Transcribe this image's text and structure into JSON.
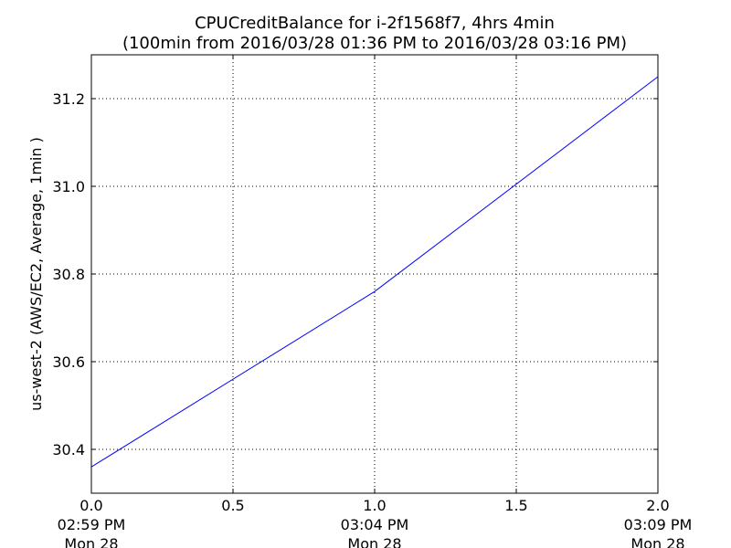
{
  "chart_data": {
    "type": "line",
    "title": "CPUCreditBalance for i-2f1568f7, 4hrs 4min",
    "subtitle": "(100min from 2016/03/28 01:36 PM to 2016/03/28 03:16 PM)",
    "xlabel": "",
    "ylabel": "us-west-2 (AWS/EC2, Average, 1min )",
    "xlim": [
      0.0,
      2.0
    ],
    "ylim": [
      30.3,
      31.3
    ],
    "grid": true,
    "grid_style": "dotted",
    "x_ticks": [
      {
        "value": 0.0,
        "label": "0.0",
        "time": "02:59 PM",
        "date": "Mon 28"
      },
      {
        "value": 0.5,
        "label": "0.5",
        "time": "",
        "date": ""
      },
      {
        "value": 1.0,
        "label": "1.0",
        "time": "03:04 PM",
        "date": "Mon 28"
      },
      {
        "value": 1.5,
        "label": "1.5",
        "time": "",
        "date": ""
      },
      {
        "value": 2.0,
        "label": "2.0",
        "time": "03:09 PM",
        "date": "Mon 28"
      }
    ],
    "y_ticks": [
      {
        "value": 30.4,
        "label": "30.4"
      },
      {
        "value": 30.6,
        "label": "30.6"
      },
      {
        "value": 30.8,
        "label": "30.8"
      },
      {
        "value": 31.0,
        "label": "31.0"
      },
      {
        "value": 31.2,
        "label": "31.2"
      }
    ],
    "series": [
      {
        "color": "#0000ff",
        "x": [
          0.0,
          1.0,
          2.0
        ],
        "y": [
          30.36,
          30.76,
          31.25
        ]
      }
    ]
  }
}
